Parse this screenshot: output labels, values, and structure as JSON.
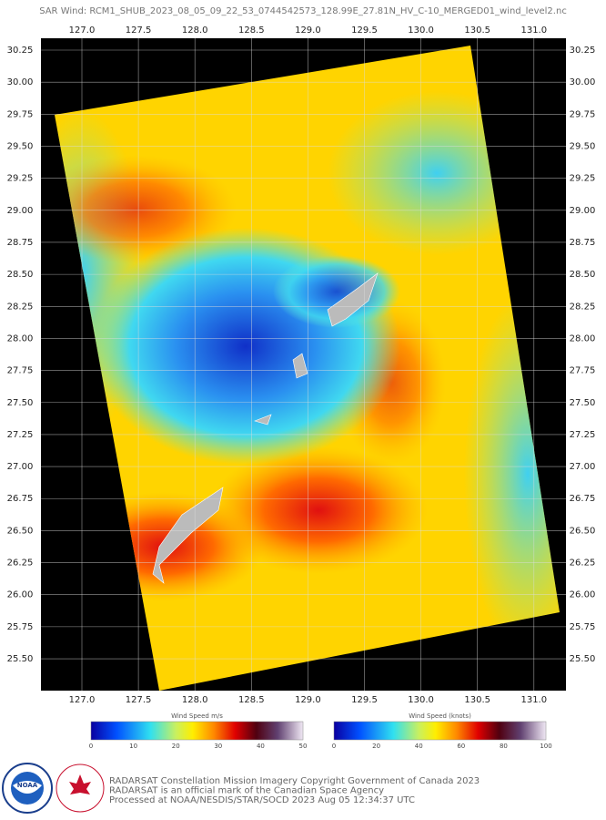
{
  "header": {
    "title": "SAR Wind: RCM1_SHUB_2023_08_05_09_22_53_0744542573_128.99E_27.81N_HV_C-10_MERGED01_wind_level2.nc"
  },
  "map": {
    "lon_labels": [
      "127.0",
      "127.5",
      "128.0",
      "128.5",
      "129.0",
      "129.5",
      "130.0",
      "130.5",
      "131.0"
    ],
    "lat_labels": [
      "30.25",
      "30.00",
      "29.75",
      "29.50",
      "29.25",
      "29.00",
      "28.75",
      "28.50",
      "28.25",
      "28.00",
      "27.75",
      "27.50",
      "27.25",
      "27.00",
      "26.75",
      "26.50",
      "26.25",
      "26.00",
      "25.75",
      "25.50"
    ]
  },
  "colorbars": [
    {
      "title": "Wind Speed m/s",
      "ticks": [
        0,
        10,
        20,
        30,
        40,
        50
      ]
    },
    {
      "title": "Wind Speed (knots)",
      "ticks": [
        0,
        20,
        40,
        60,
        80,
        100
      ]
    }
  ],
  "footer": {
    "logo": "NOAA",
    "lines": [
      "RADARSAT Constellation Mission Imagery Copyright Government of Canada 2023",
      "RADARSAT is an official mark of the Canadian Space Agency",
      "Processed at NOAA/NESDIS/STAR/SOCD 2023 Aug 05 12:34:37 UTC"
    ]
  }
}
